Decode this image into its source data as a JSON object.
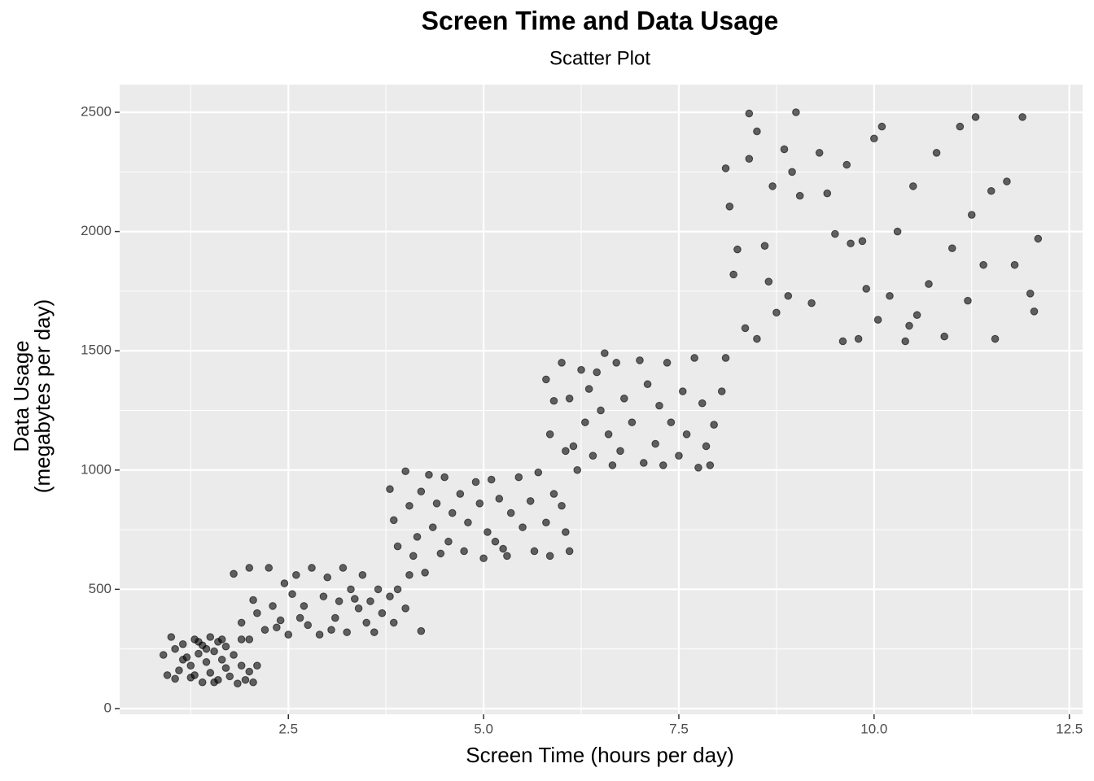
{
  "chart_data": {
    "type": "scatter",
    "title": "Screen Time and Data Usage",
    "subtitle": "Scatter Plot",
    "xlabel": "Screen Time (hours per day)",
    "ylabel": "Data Usage\n(megabytes per day)",
    "color": "#000000",
    "grid": true,
    "xlim": [
      0.34,
      12.67
    ],
    "ylim": [
      -24,
      2616
    ],
    "xticks": [
      2.5,
      {
        "value": 5,
        "label": "5.0"
      },
      7.5,
      {
        "value": 10,
        "label": "10.0"
      },
      12.5
    ],
    "yticks": [
      0,
      500,
      1000,
      1500,
      2000,
      2500
    ],
    "x": [
      0.9,
      0.95,
      1.0,
      1.05,
      1.1,
      1.15,
      1.2,
      1.25,
      1.3,
      1.3,
      1.35,
      1.4,
      1.4,
      1.45,
      1.5,
      1.5,
      1.55,
      1.6,
      1.6,
      1.65,
      1.7,
      1.7,
      1.75,
      1.8,
      1.8,
      1.85,
      1.9,
      1.9,
      1.95,
      2.0,
      2.05,
      2.1,
      1.15,
      1.35,
      1.55,
      1.45,
      1.25,
      1.65,
      2.0,
      1.05,
      2.0,
      2.05,
      2.1,
      2.2,
      2.25,
      2.3,
      2.4,
      2.45,
      2.5,
      2.55,
      2.6,
      2.7,
      2.75,
      2.8,
      2.9,
      2.95,
      3.0,
      3.1,
      3.15,
      3.2,
      3.25,
      3.3,
      3.4,
      3.45,
      3.5,
      3.55,
      3.6,
      3.65,
      3.7,
      3.8,
      3.85,
      3.9,
      4.0,
      4.05,
      4.2,
      2.35,
      2.65,
      3.05,
      3.35,
      1.9,
      3.8,
      3.85,
      3.9,
      4.0,
      4.05,
      4.1,
      4.15,
      4.2,
      4.3,
      4.35,
      4.4,
      4.45,
      4.5,
      4.55,
      4.6,
      4.7,
      4.75,
      4.8,
      4.9,
      4.95,
      5.0,
      5.05,
      5.1,
      5.15,
      5.2,
      5.3,
      5.35,
      5.45,
      5.5,
      5.6,
      5.65,
      5.7,
      5.8,
      5.85,
      5.9,
      6.0,
      6.05,
      6.1,
      4.25,
      5.25,
      5.8,
      5.85,
      5.9,
      6.0,
      6.05,
      6.1,
      6.15,
      6.2,
      6.25,
      6.3,
      6.35,
      6.4,
      6.45,
      6.5,
      6.55,
      6.6,
      6.7,
      6.75,
      6.8,
      6.9,
      7.0,
      7.05,
      7.1,
      7.2,
      7.25,
      7.3,
      7.35,
      7.4,
      7.5,
      7.55,
      7.6,
      7.7,
      7.75,
      7.8,
      7.85,
      7.9,
      7.95,
      8.05,
      8.1,
      6.65,
      8.1,
      8.15,
      8.2,
      8.25,
      8.35,
      8.4,
      8.4,
      8.5,
      8.5,
      8.6,
      8.65,
      8.7,
      8.75,
      8.85,
      8.9,
      8.95,
      9.0,
      9.05,
      9.2,
      9.3,
      9.4,
      9.5,
      9.6,
      9.65,
      9.7,
      9.8,
      9.9,
      10.0,
      10.05,
      10.1,
      10.2,
      10.3,
      10.4,
      10.5,
      10.55,
      10.7,
      10.8,
      10.9,
      11.0,
      11.1,
      11.2,
      11.3,
      11.4,
      11.5,
      11.55,
      11.7,
      11.8,
      11.9,
      12.0,
      12.05,
      12.1,
      10.45,
      9.85,
      11.25
    ],
    "y": [
      225,
      140,
      300,
      125,
      160,
      270,
      215,
      180,
      290,
      140,
      230,
      110,
      265,
      195,
      300,
      150,
      240,
      120,
      280,
      205,
      170,
      260,
      135,
      565,
      225,
      105,
      290,
      180,
      120,
      155,
      110,
      180,
      205,
      280,
      110,
      250,
      130,
      290,
      290,
      250,
      590,
      455,
      400,
      330,
      590,
      430,
      370,
      525,
      310,
      480,
      560,
      430,
      350,
      590,
      310,
      470,
      550,
      380,
      450,
      590,
      320,
      500,
      420,
      560,
      360,
      450,
      320,
      500,
      400,
      470,
      360,
      500,
      420,
      560,
      325,
      340,
      380,
      330,
      460,
      360,
      920,
      790,
      680,
      995,
      850,
      640,
      720,
      910,
      980,
      760,
      860,
      650,
      970,
      700,
      820,
      900,
      660,
      780,
      950,
      860,
      630,
      740,
      960,
      700,
      880,
      640,
      820,
      970,
      760,
      870,
      660,
      990,
      780,
      640,
      900,
      850,
      740,
      660,
      570,
      670,
      1380,
      1150,
      1290,
      1450,
      1080,
      1300,
      1100,
      1000,
      1420,
      1200,
      1340,
      1060,
      1410,
      1250,
      1490,
      1150,
      1450,
      1080,
      1300,
      1200,
      1460,
      1030,
      1360,
      1110,
      1270,
      1020,
      1450,
      1200,
      1060,
      1330,
      1150,
      1470,
      1010,
      1280,
      1100,
      1020,
      1190,
      1330,
      1470,
      1020,
      2265,
      2105,
      1820,
      1925,
      1595,
      2305,
      2495,
      1550,
      2420,
      1940,
      1790,
      2190,
      1660,
      2345,
      1730,
      2250,
      2500,
      2150,
      1700,
      2330,
      2160,
      1990,
      1540,
      2280,
      1950,
      1550,
      1760,
      2390,
      1630,
      2440,
      1730,
      2000,
      1540,
      2190,
      1650,
      1780,
      2330,
      1560,
      1930,
      2440,
      1710,
      2480,
      1860,
      2170,
      1550,
      2210,
      1860,
      2480,
      1740,
      1665,
      1970,
      1605,
      1960,
      2070
    ]
  }
}
